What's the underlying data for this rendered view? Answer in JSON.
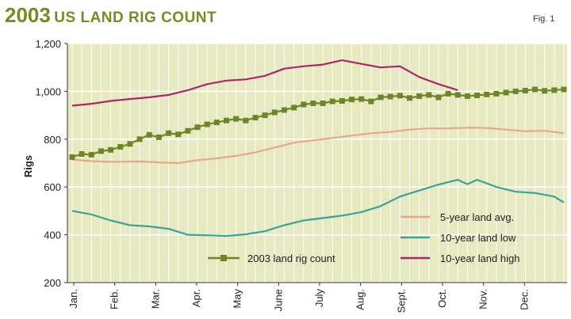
{
  "header": {
    "title_year": "2003",
    "title_rest": "US LAND RIG COUNT",
    "fig_label": "Fig. 1"
  },
  "colors": {
    "plot_bg": "#e7e9c0",
    "avg": "#e8a78c",
    "low": "#3aa39a",
    "high": "#b0246e",
    "count": "#6d8628"
  },
  "chart_data": {
    "type": "line",
    "ylabel": "Rigs",
    "ylim": [
      200,
      1200
    ],
    "yticks": [
      200,
      400,
      600,
      800,
      1000,
      1200
    ],
    "ytick_labels": [
      "200",
      "400",
      "600",
      "800",
      "1,000",
      "1,200"
    ],
    "months": [
      "Jan.",
      "Feb.",
      "Mar.",
      "Apr.",
      "May",
      "June",
      "July",
      "Aug.",
      "Sept.",
      "Oct.",
      "Nov.",
      "Dec."
    ],
    "xlim": [
      1,
      52
    ],
    "grid": "vertical weekly lines",
    "legend_position": "bottom-right",
    "series": [
      {
        "name": "5-year land avg.",
        "key": "avg",
        "marker": false,
        "x": [
          1,
          3,
          5,
          8,
          10,
          12,
          14,
          16,
          18,
          20,
          22,
          24,
          26,
          28,
          30,
          32,
          34,
          36,
          38,
          40,
          42,
          44,
          46,
          48,
          50,
          52
        ],
        "y": [
          715,
          708,
          705,
          707,
          703,
          700,
          712,
          720,
          730,
          745,
          765,
          785,
          795,
          805,
          815,
          825,
          830,
          840,
          845,
          845,
          848,
          847,
          840,
          833,
          835,
          825
        ]
      },
      {
        "name": "10-year land low",
        "key": "low",
        "marker": false,
        "x": [
          1,
          3,
          5,
          7,
          9,
          11,
          13,
          15,
          17,
          19,
          21,
          23,
          25,
          27,
          29,
          31,
          33,
          35,
          37,
          39,
          41,
          42,
          43,
          45,
          47,
          49,
          51,
          52
        ],
        "y": [
          500,
          485,
          460,
          440,
          435,
          425,
          400,
          398,
          395,
          402,
          415,
          440,
          460,
          470,
          480,
          495,
          520,
          560,
          585,
          610,
          630,
          612,
          630,
          600,
          580,
          575,
          560,
          535
        ]
      },
      {
        "name": "10-year land high",
        "key": "high",
        "marker": false,
        "x": [
          1,
          3,
          5,
          7,
          9,
          11,
          13,
          15,
          17,
          19,
          21,
          23,
          25,
          27,
          29,
          31,
          33,
          35,
          37,
          39,
          41
        ],
        "y": [
          940,
          948,
          960,
          968,
          975,
          985,
          1005,
          1030,
          1045,
          1050,
          1065,
          1095,
          1105,
          1112,
          1130,
          1115,
          1100,
          1105,
          1060,
          1030,
          1005
        ]
      },
      {
        "name": "2003 land rig count",
        "key": "count",
        "marker": true,
        "x": [
          1,
          2,
          3,
          4,
          5,
          6,
          7,
          8,
          9,
          10,
          11,
          12,
          13,
          14,
          15,
          16,
          17,
          18,
          19,
          20,
          21,
          22,
          23,
          24,
          25,
          26,
          27,
          28,
          29,
          30,
          31,
          32,
          33,
          34,
          35,
          36,
          37,
          38,
          39,
          40,
          41,
          42,
          43,
          44,
          45,
          46,
          47,
          48,
          49,
          50,
          51,
          52
        ],
        "y": [
          725,
          738,
          735,
          750,
          755,
          768,
          780,
          800,
          818,
          808,
          825,
          820,
          835,
          850,
          862,
          870,
          878,
          885,
          878,
          890,
          900,
          912,
          922,
          932,
          945,
          950,
          950,
          958,
          960,
          966,
          968,
          958,
          975,
          978,
          982,
          972,
          980,
          985,
          975,
          990,
          985,
          980,
          983,
          987,
          990,
          995,
          1000,
          1003,
          1008,
          1002,
          1005,
          1008
        ]
      }
    ]
  }
}
